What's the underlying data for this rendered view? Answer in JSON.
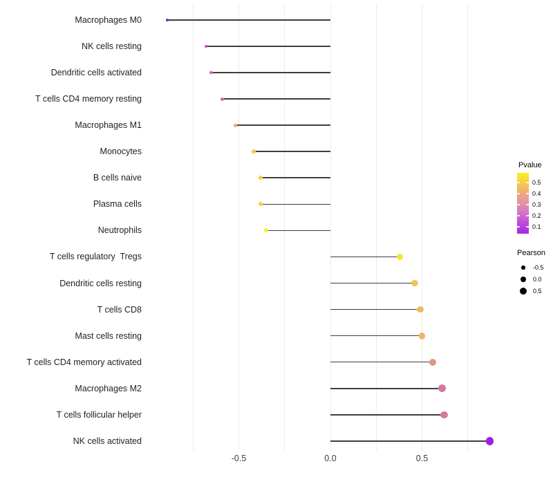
{
  "chart_data": {
    "type": "lollipop",
    "orientation": "horizontal",
    "xlabel": "",
    "ylabel": "",
    "x_axis": {
      "ticks": [
        {
          "value": -0.5,
          "label": "-0.5"
        },
        {
          "value": 0.0,
          "label": "0.0"
        },
        {
          "value": 0.5,
          "label": "0.5"
        }
      ],
      "gridline_values": [
        -0.75,
        -0.5,
        -0.25,
        0.0,
        0.25,
        0.5,
        0.75
      ],
      "range_shown": [
        -0.98,
        0.96
      ],
      "grid": "vertical-only"
    },
    "points": [
      {
        "label": "Macrophages M0",
        "pearson": -0.89,
        "pvalue": 0.07,
        "color": "#8326D6"
      },
      {
        "label": "NK cells resting",
        "pearson": -0.68,
        "pvalue": 0.17,
        "color": "#C353C4"
      },
      {
        "label": "Dendritic cells activated",
        "pearson": -0.65,
        "pvalue": 0.19,
        "color": "#CA5FBC"
      },
      {
        "label": "T cells CD4 memory resting",
        "pearson": -0.59,
        "pvalue": 0.26,
        "color": "#D4738F"
      },
      {
        "label": "Macrophages M1",
        "pearson": -0.52,
        "pvalue": 0.36,
        "color": "#EBA76E"
      },
      {
        "label": "Monocytes",
        "pearson": -0.42,
        "pvalue": 0.45,
        "color": "#F2C94E"
      },
      {
        "label": "B cells naive",
        "pearson": -0.38,
        "pvalue": 0.48,
        "color": "#F2D53E"
      },
      {
        "label": "Plasma cells",
        "pearson": -0.38,
        "pvalue": 0.48,
        "color": "#F2D53E"
      },
      {
        "label": "Neutrophils",
        "pearson": -0.35,
        "pvalue": 0.55,
        "color": "#F7EE27"
      },
      {
        "label": "T cells regulatory  Tregs",
        "pearson": 0.38,
        "pvalue": 0.52,
        "color": "#F5E531"
      },
      {
        "label": "Dendritic cells resting",
        "pearson": 0.46,
        "pvalue": 0.44,
        "color": "#F0C353"
      },
      {
        "label": "T cells CD8",
        "pearson": 0.49,
        "pvalue": 0.42,
        "color": "#EFBC5C"
      },
      {
        "label": "Mast cells resting",
        "pearson": 0.5,
        "pvalue": 0.41,
        "color": "#EEB760"
      },
      {
        "label": "T cells CD4 memory activated",
        "pearson": 0.56,
        "pvalue": 0.31,
        "color": "#E29183"
      },
      {
        "label": "Macrophages M2",
        "pearson": 0.61,
        "pvalue": 0.25,
        "color": "#D378A2"
      },
      {
        "label": "T cells follicular helper",
        "pearson": 0.62,
        "pvalue": 0.25,
        "color": "#D378A2"
      },
      {
        "label": "NK cells activated",
        "pearson": 0.87,
        "pvalue": 0.05,
        "color": "#A01FE2"
      }
    ],
    "legend": {
      "position": "right",
      "pvalue": {
        "title": "Pvalue",
        "tick_labels": [
          "0.5",
          "0.4",
          "0.3",
          "0.2",
          "0.1"
        ],
        "range": [
          0.04,
          0.59
        ],
        "gradient_colors_top_to_bottom": [
          "#F9F021",
          "#F4CE4B",
          "#EEA87C",
          "#E392A6",
          "#D672C8",
          "#BC49DA",
          "#A32BDC"
        ]
      },
      "pearson": {
        "title": "Pearson",
        "items": [
          {
            "label": "-0.5",
            "value": -0.5
          },
          {
            "label": "0.0",
            "value": 0.0
          },
          {
            "label": "0.5",
            "value": 0.5
          }
        ],
        "dot_color": "#000000"
      }
    },
    "stem_color": "#3d3d3d",
    "background": "#ffffff"
  }
}
